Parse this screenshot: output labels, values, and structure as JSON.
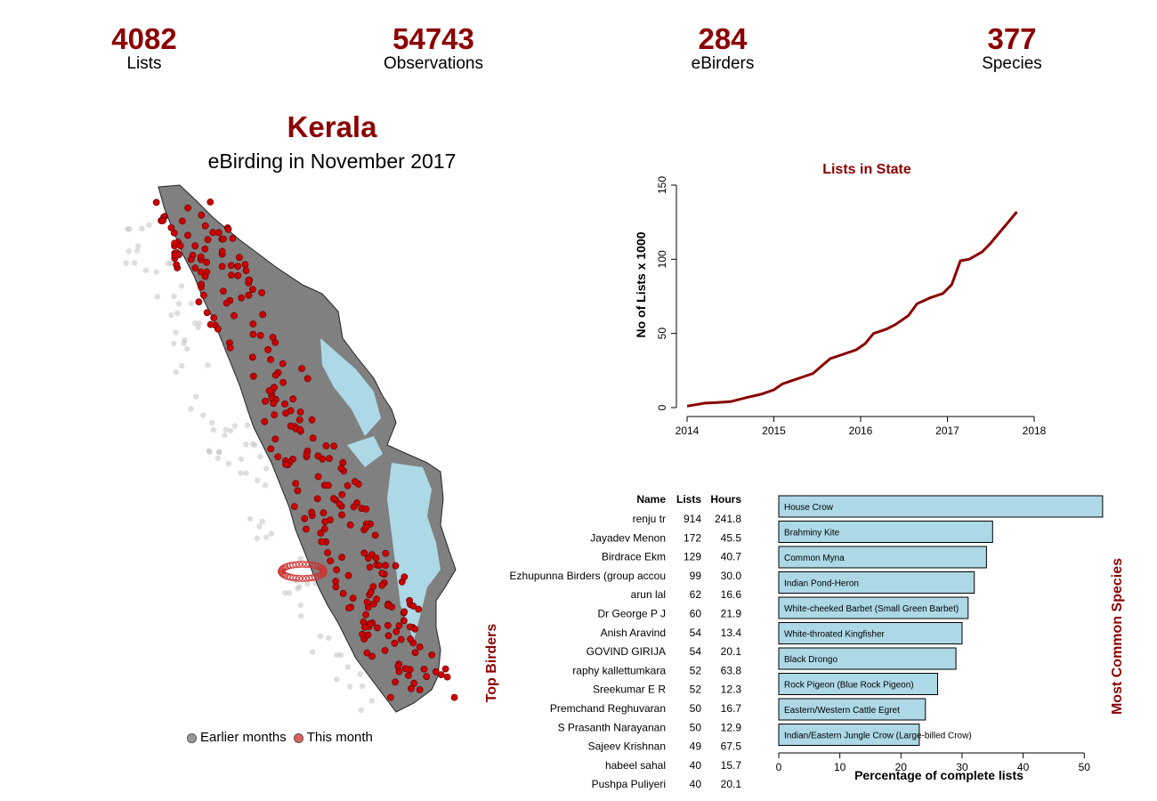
{
  "stats": [
    {
      "value": "4082",
      "label": "Lists"
    },
    {
      "value": "54743",
      "label": "Observations"
    },
    {
      "value": "284",
      "label": "eBirders"
    },
    {
      "value": "377",
      "label": "Species"
    }
  ],
  "map": {
    "title": "Kerala",
    "subtitle": "eBirding in November 2017",
    "legend": {
      "earlier": "Earlier months",
      "current": "This month"
    },
    "colors": {
      "earlier": "#808080",
      "current": "#cc0000",
      "land": "#808080",
      "water": "#add8e6"
    }
  },
  "top_birders": {
    "title": "Top Birders",
    "headers": [
      "Name",
      "Lists",
      "Hours"
    ],
    "rows": [
      [
        "renju tr",
        "914",
        "241.8"
      ],
      [
        "Jayadev  Menon",
        "172",
        "45.5"
      ],
      [
        "Birdrace Ekm",
        "129",
        "40.7"
      ],
      [
        "Ezhupunna Birders (group accou",
        "99",
        "30.0"
      ],
      [
        "arun  lal",
        "62",
        "16.6"
      ],
      [
        "Dr George P J",
        "60",
        "21.9"
      ],
      [
        "Anish Aravind",
        "54",
        "13.4"
      ],
      [
        "GOVIND GIRIJA",
        "54",
        "20.1"
      ],
      [
        "raphy kallettumkara",
        "52",
        "63.8"
      ],
      [
        "Sreekumar E R",
        "52",
        "12.3"
      ],
      [
        "Premchand Reghuvaran",
        "50",
        "16.7"
      ],
      [
        "S Prasanth Narayanan",
        "50",
        "12.9"
      ],
      [
        "Sajeev Krishnan",
        "49",
        "67.5"
      ],
      [
        "habeel sahal",
        "40",
        "15.7"
      ],
      [
        "Pushpa Puliyeri",
        "40",
        "20.1"
      ]
    ]
  },
  "chart_data": [
    {
      "type": "line",
      "title": "Lists in State",
      "xlabel": "",
      "ylabel": "No of Lists x 1000",
      "xlim": [
        2014,
        2018
      ],
      "ylim": [
        0,
        150
      ],
      "x_ticks": [
        "2014",
        "2015",
        "2016",
        "2017",
        "2018"
      ],
      "y_ticks": [
        "0",
        "50",
        "100",
        "150"
      ],
      "color": "#8b0000",
      "x": [
        2014.0,
        2014.1,
        2014.2,
        2014.35,
        2014.5,
        2014.7,
        2014.85,
        2015.0,
        2015.1,
        2015.25,
        2015.35,
        2015.45,
        2015.55,
        2015.65,
        2015.8,
        2015.95,
        2016.05,
        2016.15,
        2016.3,
        2016.4,
        2016.55,
        2016.65,
        2016.8,
        2016.95,
        2017.05,
        2017.15,
        2017.25,
        2017.4,
        2017.5,
        2017.6,
        2017.7,
        2017.8
      ],
      "y": [
        1,
        2,
        3,
        3.5,
        4,
        7,
        9,
        12,
        16,
        19,
        21,
        23,
        28,
        33,
        36,
        39,
        43,
        50,
        53,
        56,
        62,
        70,
        74,
        77,
        83,
        99,
        100,
        105,
        111,
        118,
        125,
        132
      ]
    },
    {
      "type": "bar",
      "title": "Most Common Species",
      "xlabel": "Percentage of complete lists",
      "ylabel": "",
      "xlim": [
        0,
        52
      ],
      "x_ticks": [
        "0",
        "10",
        "20",
        "30",
        "40",
        "50"
      ],
      "bar_color": "#add8e6",
      "categories": [
        "House Crow",
        "Brahminy Kite",
        "Common Myna",
        "Indian Pond-Heron",
        "White-cheeked Barbet (Small Green Barbet)",
        "White-throated Kingfisher",
        "Black Drongo",
        "Rock Pigeon (Blue Rock Pigeon)",
        "Eastern/Western Cattle Egret",
        "Indian/Eastern Jungle Crow (Large-billed Crow)"
      ],
      "values": [
        53,
        35,
        34,
        32,
        31,
        30,
        29,
        26,
        24,
        23
      ]
    }
  ]
}
